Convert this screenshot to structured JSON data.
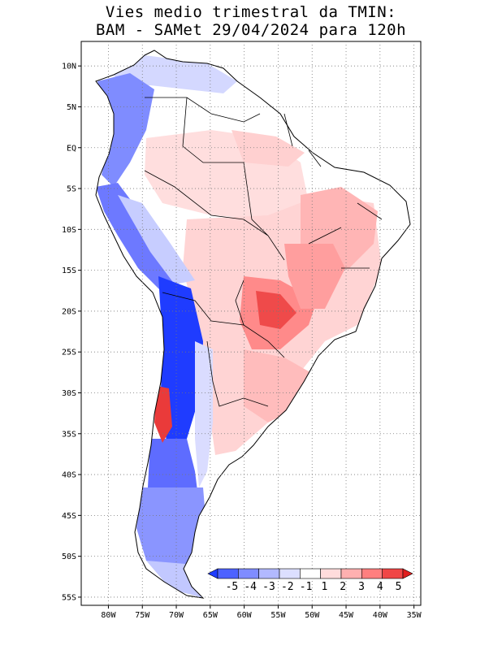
{
  "title": {
    "line1": "Vies medio trimestral da TMIN:",
    "line2": "BAM - SAMet 29/04/2024  para 120h"
  },
  "map": {
    "lon_range": [
      -84,
      -34
    ],
    "lat_range": [
      -56,
      13
    ],
    "grid": true,
    "lon_ticks": [
      {
        "value": -80,
        "label": "80W"
      },
      {
        "value": -75,
        "label": "75W"
      },
      {
        "value": -70,
        "label": "70W"
      },
      {
        "value": -65,
        "label": "65W"
      },
      {
        "value": -60,
        "label": "60W"
      },
      {
        "value": -55,
        "label": "55W"
      },
      {
        "value": -50,
        "label": "50W"
      },
      {
        "value": -45,
        "label": "45W"
      },
      {
        "value": -40,
        "label": "40W"
      },
      {
        "value": -35,
        "label": "35W"
      }
    ],
    "lat_ticks": [
      {
        "value": 10,
        "label": "10N"
      },
      {
        "value": 5,
        "label": "5N"
      },
      {
        "value": 0,
        "label": "EQ"
      },
      {
        "value": -5,
        "label": "5S"
      },
      {
        "value": -10,
        "label": "10S"
      },
      {
        "value": -15,
        "label": "15S"
      },
      {
        "value": -20,
        "label": "20S"
      },
      {
        "value": -25,
        "label": "25S"
      },
      {
        "value": -30,
        "label": "30S"
      },
      {
        "value": -35,
        "label": "35S"
      },
      {
        "value": -40,
        "label": "40S"
      },
      {
        "value": -45,
        "label": "45S"
      },
      {
        "value": -50,
        "label": "50S"
      },
      {
        "value": -55,
        "label": "55S"
      }
    ]
  },
  "colorbar": {
    "labels": [
      "-5",
      "-4",
      "-3",
      "-2",
      "-1",
      "1",
      "2",
      "3",
      "4",
      "5"
    ],
    "colors": [
      "#1e3cff",
      "#4d62ff",
      "#7f8cff",
      "#b2b9ff",
      "#dcdfff",
      "#ffffff",
      "#ffdcdc",
      "#ffb0b0",
      "#ff7f7f",
      "#f04646",
      "#e01e1e"
    ]
  },
  "colors": {
    "cold_strong": "#1e3cff",
    "cold_medium": "#6f7dff",
    "cold_light": "#c9ceff",
    "warm_light": "#ffd9d9",
    "warm_medium": "#ff9a9a",
    "warm_strong": "#ee3030",
    "land_neutral": "#ffffff"
  }
}
